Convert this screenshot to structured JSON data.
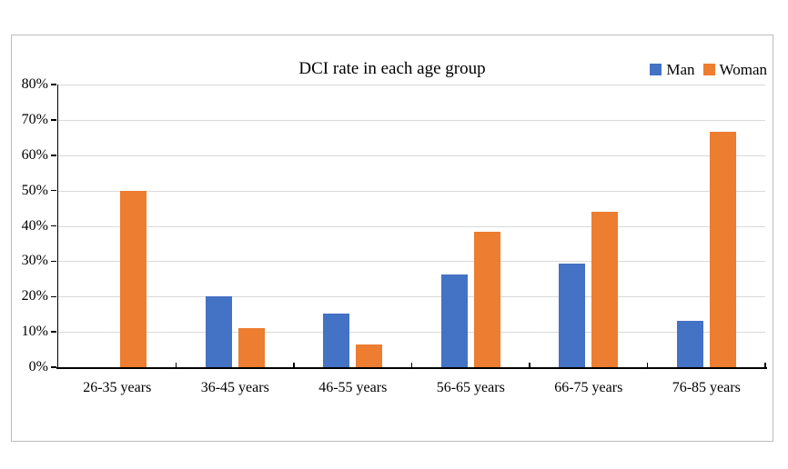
{
  "chart_data": {
    "type": "bar",
    "title": "DCI rate in each age group",
    "categories": [
      "26-35 years",
      "36-45 years",
      "46-55 years",
      "56-65 years",
      "66-75 years",
      "76-85 years"
    ],
    "series": [
      {
        "name": "Man",
        "color": "#4472C4",
        "values": [
          0,
          20,
          15.2,
          26.3,
          29.4,
          13
        ]
      },
      {
        "name": "Woman",
        "color": "#ED7D31",
        "values": [
          50,
          11.1,
          6.5,
          38.2,
          44.1,
          66.7
        ]
      }
    ],
    "xlabel": "",
    "ylabel": "",
    "ylim": [
      0,
      80
    ],
    "ytick_step": 10,
    "ytick_labels": [
      "0%",
      "10%",
      "20%",
      "30%",
      "40%",
      "50%",
      "60%",
      "70%",
      "80%"
    ],
    "grid": true,
    "legend_position": "top-right",
    "colors": {
      "gridline": "#d9d9d9",
      "axis": "#000000",
      "frame_border": "#bdbdbd",
      "background": "#ffffff"
    }
  }
}
